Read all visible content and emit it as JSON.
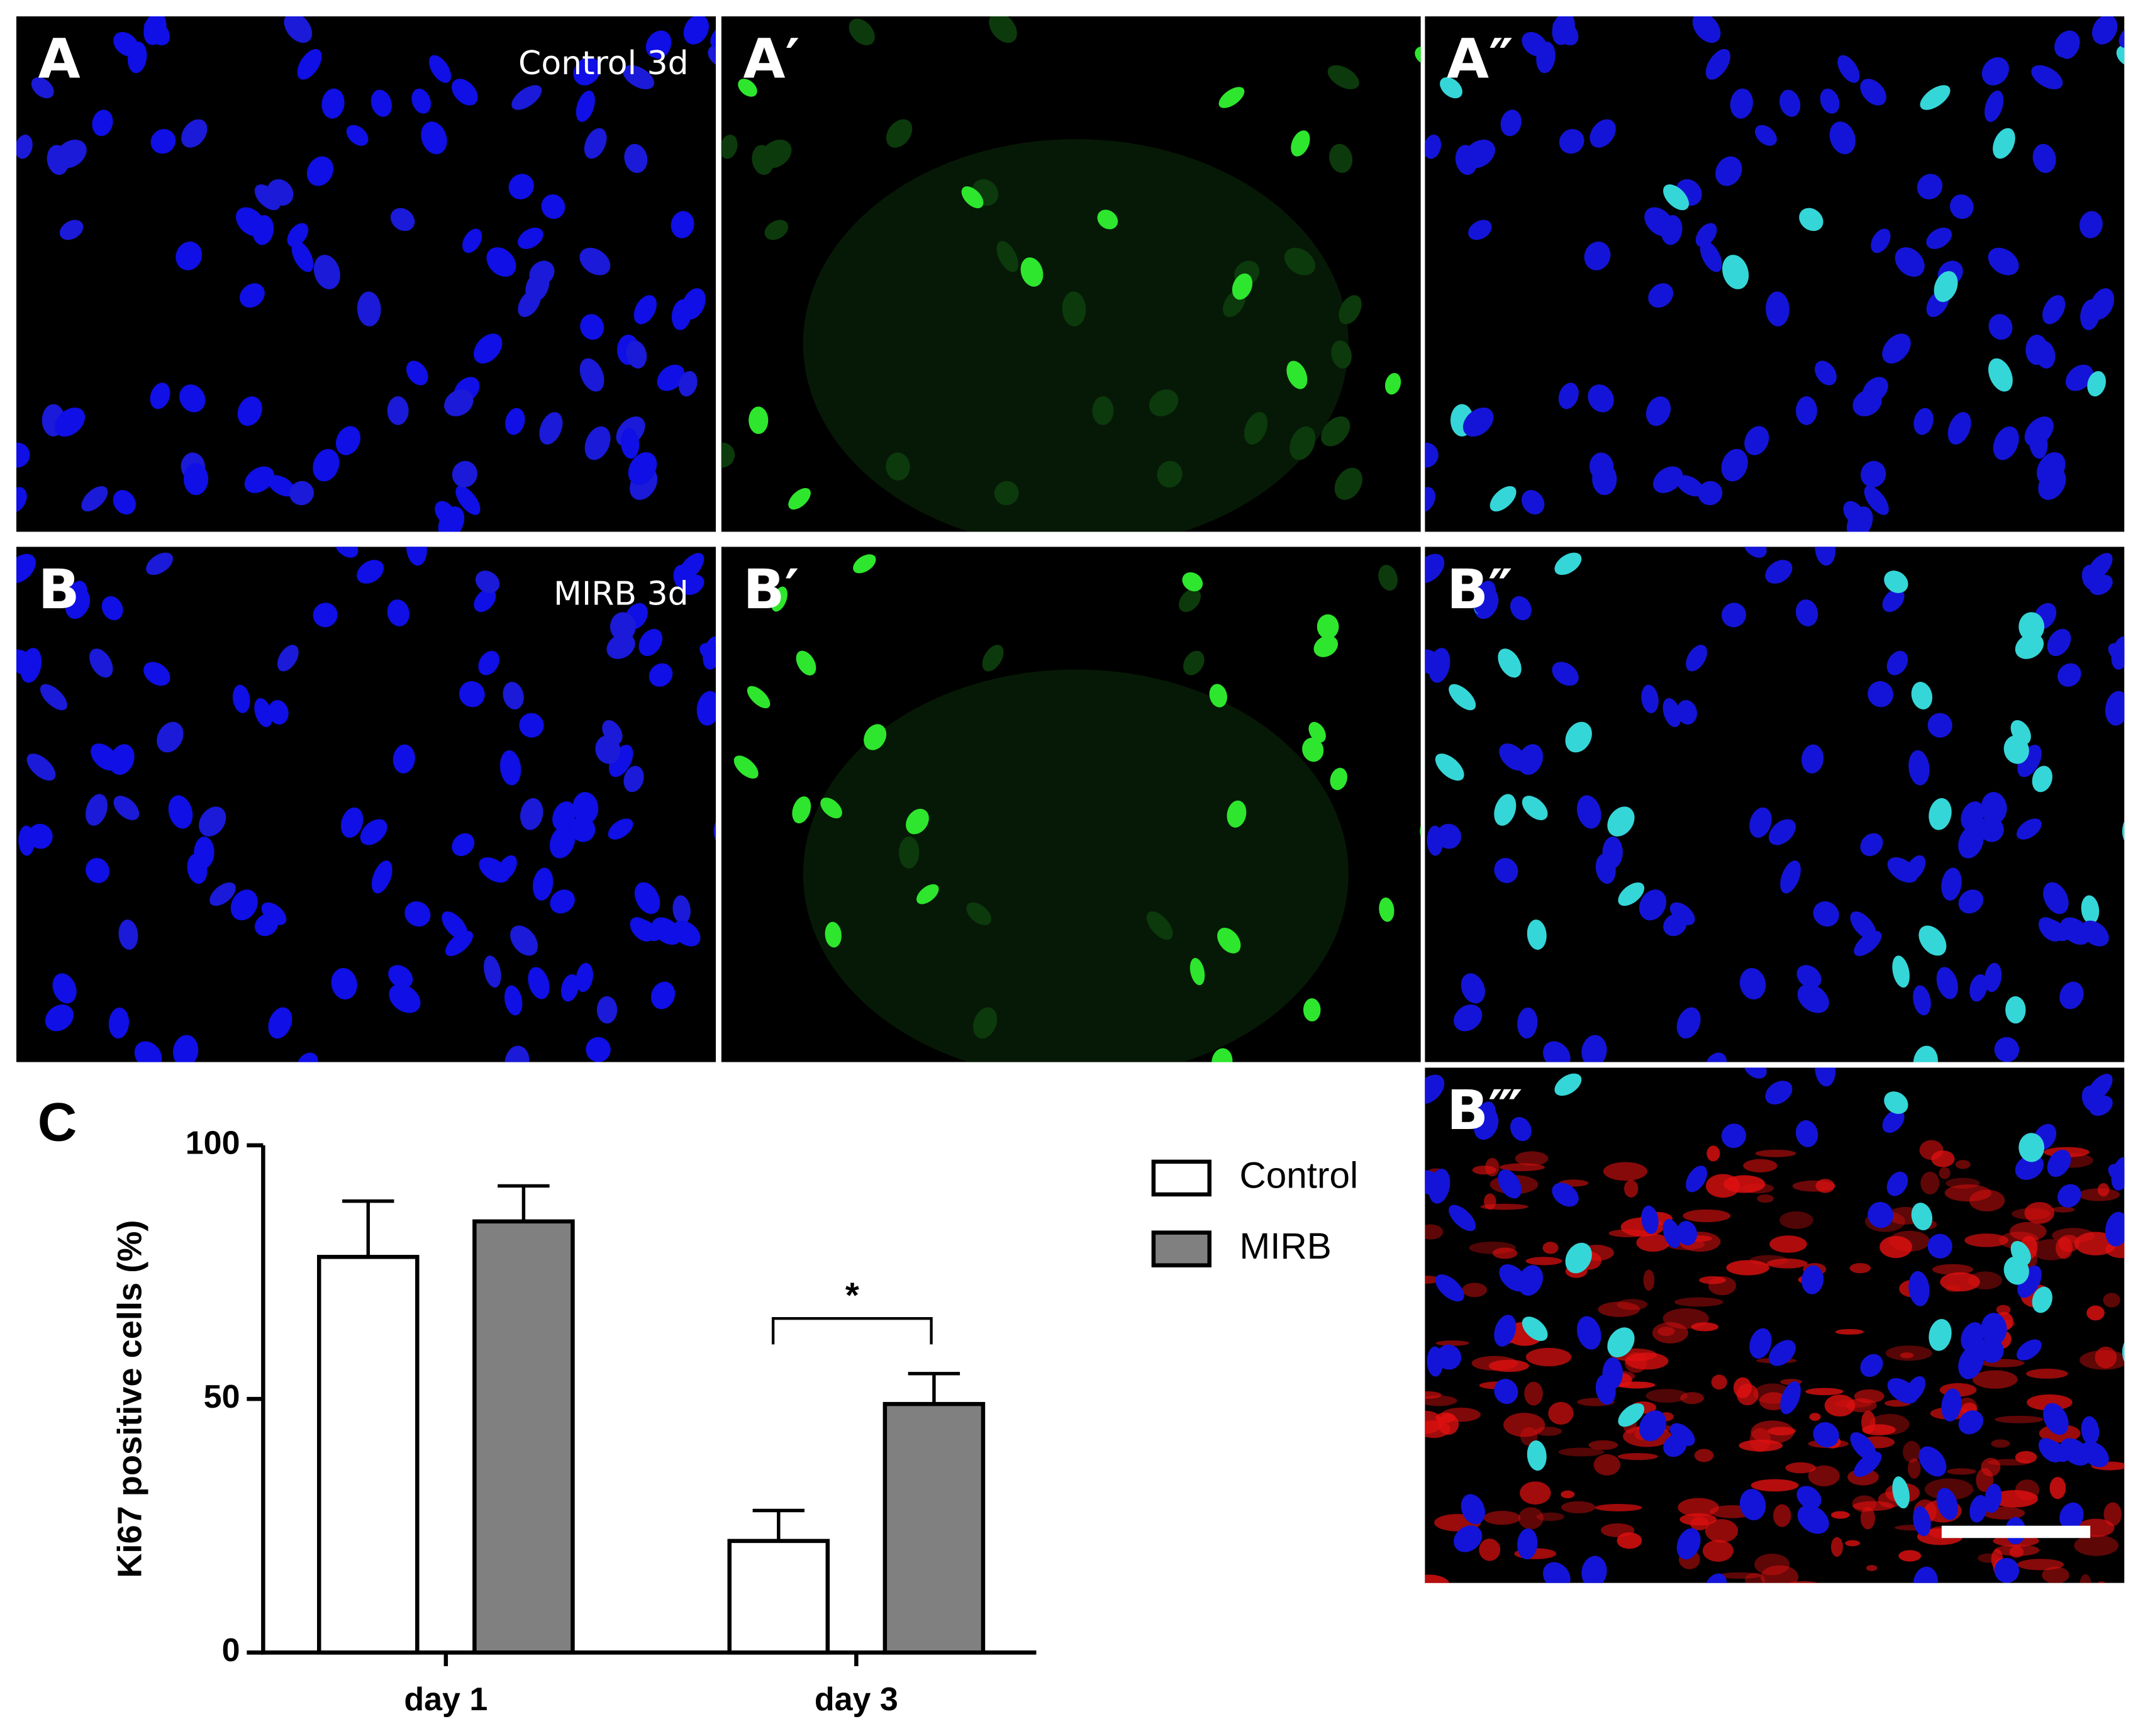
{
  "panels": [
    {
      "label": "A",
      "caption": "Control 3d"
    },
    {
      "label": "A′"
    },
    {
      "label": "A″"
    },
    {
      "label": "B",
      "caption": "MIRB 3d"
    },
    {
      "label": "B′"
    },
    {
      "label": "B″"
    },
    {
      "label": "B‴"
    }
  ],
  "chart_data": {
    "type": "bar",
    "panel_label": "C",
    "y_label": "Ki67 positive cells (%)",
    "categories": [
      "day 1",
      "day 3"
    ],
    "series": [
      {
        "name": "Control",
        "color": "#ffffff",
        "values": [
          78,
          22
        ],
        "errors": [
          11,
          6
        ]
      },
      {
        "name": "MIRB",
        "color": "#808080",
        "values": [
          85,
          49
        ],
        "errors": [
          7,
          6
        ]
      }
    ],
    "ylim": [
      0,
      100
    ],
    "yticks": [
      0,
      50,
      100
    ],
    "significance_label": "*",
    "legend": "right"
  }
}
